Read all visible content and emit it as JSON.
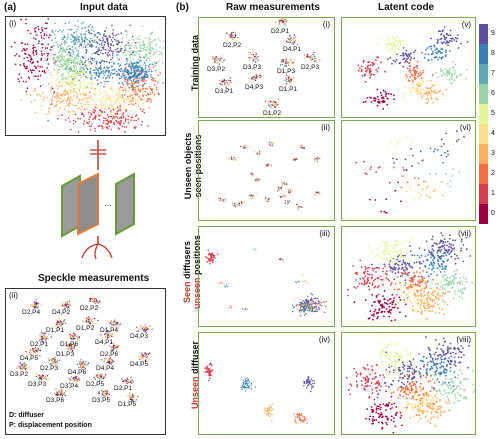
{
  "panel_a": {
    "tag": "(a)",
    "title": "Input data",
    "sub_i": "(i)",
    "speckle_title": "Speckle measurements",
    "sub_ii": "(ii)",
    "legend_d": "D: diffuser",
    "legend_p": "P: displacement position",
    "cluster_labels": [
      "D2,P4",
      "D4,P2",
      "D2,P2",
      "D1,P1",
      "D1,P2",
      "D1,P4",
      "D2,P1",
      "D1,P6",
      "D4,P1",
      "D4,P3",
      "D4,P5",
      "D1,P3",
      "D2,P6",
      "D3,P2",
      "D2,P3",
      "D4,P6",
      "D4,P4",
      "D4,P5",
      "D3,P3",
      "D3,P4",
      "D2,P5",
      "D2,P1",
      "D3,P6",
      "D3,P5",
      "D1,P5"
    ],
    "colors": {
      "frame": "#333333",
      "diffuser_frame": "#6a9a3c",
      "diffuser_middle": "#e07b39",
      "arrow": "#c0392b"
    }
  },
  "panel_b": {
    "tag": "(b)",
    "col_raw": "Raw measurements",
    "col_latent": "Latent code",
    "rows": [
      {
        "label_parts": [
          {
            "text": "Training data",
            "color": "#111111"
          }
        ],
        "raw_tag": "(i)",
        "latent_tag": "(v)"
      },
      {
        "label_parts": [
          {
            "text": "Unseen objects",
            "color": "#111111"
          },
          {
            "text": "seen positions",
            "color": "#111111"
          }
        ],
        "raw_tag": "(ii)",
        "latent_tag": "(vi)"
      },
      {
        "label_parts": [
          {
            "text": "Seen",
            "color": "#c0392b"
          },
          {
            "text": " diffusers ",
            "color": "#111111"
          },
          {
            "text": "unseen",
            "color": "#c0392b"
          },
          {
            "text": " positions",
            "color": "#111111"
          }
        ],
        "raw_tag": "(iii)",
        "latent_tag": "(vii)"
      },
      {
        "label_parts": [
          {
            "text": "Unseen",
            "color": "#c0392b"
          },
          {
            "text": " diffuser",
            "color": "#111111"
          }
        ],
        "raw_tag": "(iv)",
        "latent_tag": "(viii)"
      }
    ],
    "training_labels": [
      "D2,P1",
      "D2,P2",
      "D4,P1",
      "D3,P2",
      "D3,P3",
      "D1,P3",
      "D2,P3",
      "D4,P3",
      "D3,P1",
      "D1,P1",
      "D1,P2"
    ],
    "colorbar": {
      "ticks": [
        "9",
        "8",
        "7",
        "6",
        "5",
        "4",
        "3",
        "2",
        "1",
        "0"
      ],
      "colors": [
        "#5e4fa2",
        "#3b7fb9",
        "#5fa8b5",
        "#99d4a4",
        "#e6f598",
        "#fee08b",
        "#fdae61",
        "#f46d43",
        "#d53e4f",
        "#9e0142"
      ]
    }
  }
}
